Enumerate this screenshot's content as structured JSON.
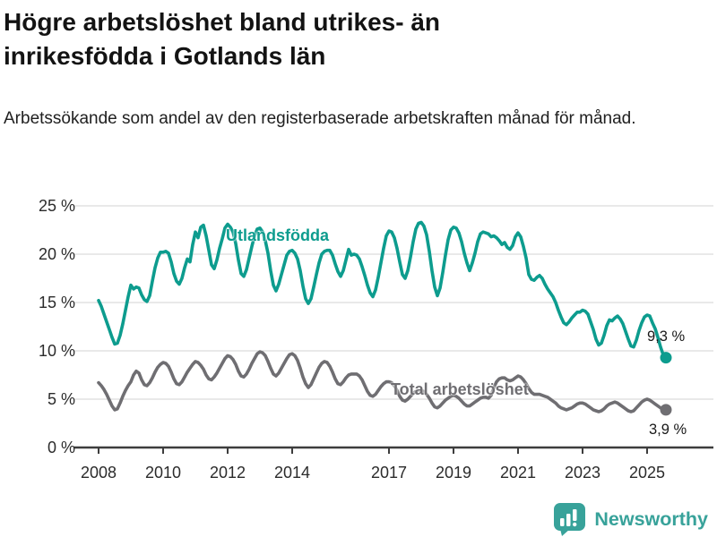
{
  "header": {
    "title_line1": "Högre arbetslöshet bland utrikes- än",
    "title_line2": "inrikesfödda i Gotlands län",
    "subtitle": "Arbetssökande som andel av den registerbaserade arbetskraften månad för månad."
  },
  "chart_data": {
    "type": "line",
    "title": "Högre arbetslöshet bland utrikes- än inrikesfödda i Gotlands län",
    "subtitle": "Arbetssökande som andel av den registerbaserade arbetskraften månad för månad.",
    "unit": "%",
    "x_range": [
      "2008-01",
      "2025-08"
    ],
    "x_frequency": "monthly",
    "ylim": [
      0,
      25
    ],
    "grid": "horizontal",
    "x_ticks": [
      "2008",
      "2010",
      "2012",
      "2014",
      "2017",
      "2019",
      "2021",
      "2023",
      "2025"
    ],
    "y_tick_labels": [
      "25 %",
      "20 %",
      "15 %",
      "10 %",
      "5 %",
      "0 %"
    ],
    "y_tick_values": [
      25,
      20,
      15,
      10,
      5,
      0
    ],
    "series": [
      {
        "name": "Utlandsfödda",
        "color": "#0d9c8e",
        "end_label": "9,3 %",
        "end_value": 9.3,
        "values": [
          15.2,
          14.6,
          13.8,
          13.0,
          12.2,
          11.4,
          10.7,
          10.8,
          11.6,
          12.8,
          14.2,
          15.6,
          16.8,
          16.4,
          16.6,
          16.5,
          15.8,
          15.3,
          15.1,
          15.7,
          17.2,
          18.6,
          19.6,
          20.2,
          20.2,
          20.3,
          20.1,
          19.2,
          18.0,
          17.2,
          16.9,
          17.5,
          18.6,
          19.5,
          19.2,
          21.0,
          22.3,
          21.7,
          22.8,
          23.0,
          21.9,
          20.4,
          18.9,
          18.5,
          19.4,
          20.6,
          21.6,
          22.7,
          23.1,
          22.8,
          22.3,
          21.1,
          19.4,
          18.0,
          17.7,
          18.4,
          19.6,
          20.8,
          21.9,
          22.6,
          22.7,
          22.3,
          21.4,
          20.1,
          18.3,
          16.8,
          16.2,
          16.9,
          17.9,
          18.9,
          19.9,
          20.3,
          20.4,
          20.1,
          19.5,
          18.3,
          16.7,
          15.4,
          14.9,
          15.4,
          16.6,
          17.9,
          19.1,
          20.0,
          20.3,
          20.4,
          20.4,
          19.9,
          19.0,
          18.2,
          17.7,
          18.3,
          19.4,
          20.5,
          19.9,
          20.0,
          19.9,
          19.5,
          18.7,
          17.8,
          16.8,
          16.0,
          15.6,
          16.3,
          17.6,
          19.1,
          20.6,
          21.9,
          22.4,
          22.3,
          21.7,
          20.6,
          19.2,
          17.9,
          17.5,
          18.3,
          19.7,
          21.3,
          22.6,
          23.2,
          23.3,
          22.9,
          22.0,
          20.3,
          18.3,
          16.6,
          15.7,
          16.5,
          18.1,
          19.9,
          21.5,
          22.5,
          22.8,
          22.7,
          22.2,
          21.3,
          20.1,
          19.1,
          18.3,
          19.1,
          20.1,
          21.3,
          22.1,
          22.3,
          22.2,
          22.1,
          21.8,
          21.9,
          21.7,
          21.4,
          21.0,
          21.2,
          20.7,
          20.5,
          20.9,
          21.8,
          22.2,
          21.8,
          20.8,
          19.6,
          17.9,
          17.4,
          17.3,
          17.6,
          17.8,
          17.5,
          16.9,
          16.4,
          16.0,
          15.6,
          15.0,
          14.2,
          13.5,
          12.9,
          12.7,
          13.0,
          13.4,
          13.7,
          14.0,
          14.0,
          14.2,
          14.1,
          13.8,
          13.0,
          12.2,
          11.2,
          10.6,
          10.8,
          11.6,
          12.6,
          13.2,
          13.1,
          13.4,
          13.6,
          13.3,
          12.8,
          12.0,
          11.2,
          10.5,
          10.4,
          11.1,
          12.1,
          12.9,
          13.5,
          13.7,
          13.6,
          12.9,
          12.3,
          11.4,
          10.4,
          9.6,
          9.3
        ]
      },
      {
        "name": "Total arbetslöshet",
        "color": "#6f6e72",
        "end_label": "3,9 %",
        "end_value": 3.9,
        "values": [
          6.7,
          6.4,
          6.0,
          5.5,
          4.9,
          4.3,
          3.9,
          4.0,
          4.6,
          5.3,
          5.9,
          6.4,
          6.8,
          7.5,
          7.9,
          7.7,
          7.0,
          6.5,
          6.4,
          6.7,
          7.2,
          7.8,
          8.3,
          8.6,
          8.8,
          8.7,
          8.4,
          7.8,
          7.1,
          6.6,
          6.5,
          6.8,
          7.3,
          7.8,
          8.2,
          8.6,
          8.9,
          8.8,
          8.5,
          8.1,
          7.5,
          7.1,
          7.0,
          7.3,
          7.7,
          8.2,
          8.7,
          9.2,
          9.5,
          9.4,
          9.1,
          8.6,
          7.9,
          7.4,
          7.3,
          7.6,
          8.1,
          8.7,
          9.2,
          9.7,
          9.9,
          9.8,
          9.5,
          8.9,
          8.2,
          7.6,
          7.4,
          7.7,
          8.2,
          8.7,
          9.2,
          9.6,
          9.7,
          9.5,
          9.0,
          8.2,
          7.3,
          6.6,
          6.2,
          6.5,
          7.1,
          7.7,
          8.3,
          8.7,
          8.9,
          8.8,
          8.4,
          7.8,
          7.1,
          6.6,
          6.5,
          6.8,
          7.2,
          7.5,
          7.6,
          7.6,
          7.6,
          7.4,
          7.0,
          6.4,
          5.8,
          5.4,
          5.3,
          5.5,
          5.9,
          6.3,
          6.6,
          6.8,
          6.8,
          6.7,
          6.4,
          5.9,
          5.3,
          4.9,
          4.8,
          5.0,
          5.3,
          5.6,
          5.8,
          5.9,
          5.9,
          5.8,
          5.5,
          5.1,
          4.6,
          4.2,
          4.1,
          4.3,
          4.6,
          4.9,
          5.1,
          5.3,
          5.4,
          5.3,
          5.1,
          4.8,
          4.5,
          4.3,
          4.3,
          4.5,
          4.7,
          4.9,
          5.1,
          5.2,
          5.2,
          5.1,
          5.4,
          6.2,
          6.8,
          7.1,
          7.2,
          7.2,
          7.0,
          6.9,
          7.0,
          7.2,
          7.4,
          7.3,
          7.0,
          6.6,
          6.1,
          5.7,
          5.5,
          5.5,
          5.5,
          5.4,
          5.3,
          5.2,
          5.0,
          4.8,
          4.6,
          4.3,
          4.1,
          4.0,
          3.9,
          4.0,
          4.1,
          4.3,
          4.5,
          4.6,
          4.6,
          4.5,
          4.3,
          4.1,
          3.9,
          3.8,
          3.7,
          3.8,
          4.0,
          4.3,
          4.5,
          4.6,
          4.7,
          4.6,
          4.4,
          4.2,
          4.0,
          3.8,
          3.7,
          3.8,
          4.1,
          4.4,
          4.7,
          4.9,
          5.0,
          4.9,
          4.7,
          4.5,
          4.3,
          4.1,
          3.9,
          3.9
        ]
      }
    ]
  },
  "footer": {
    "brand": "Newsworthy",
    "brand_color": "#38a29a",
    "logo_icon": "bar-chart-speech-bubble-icon"
  }
}
